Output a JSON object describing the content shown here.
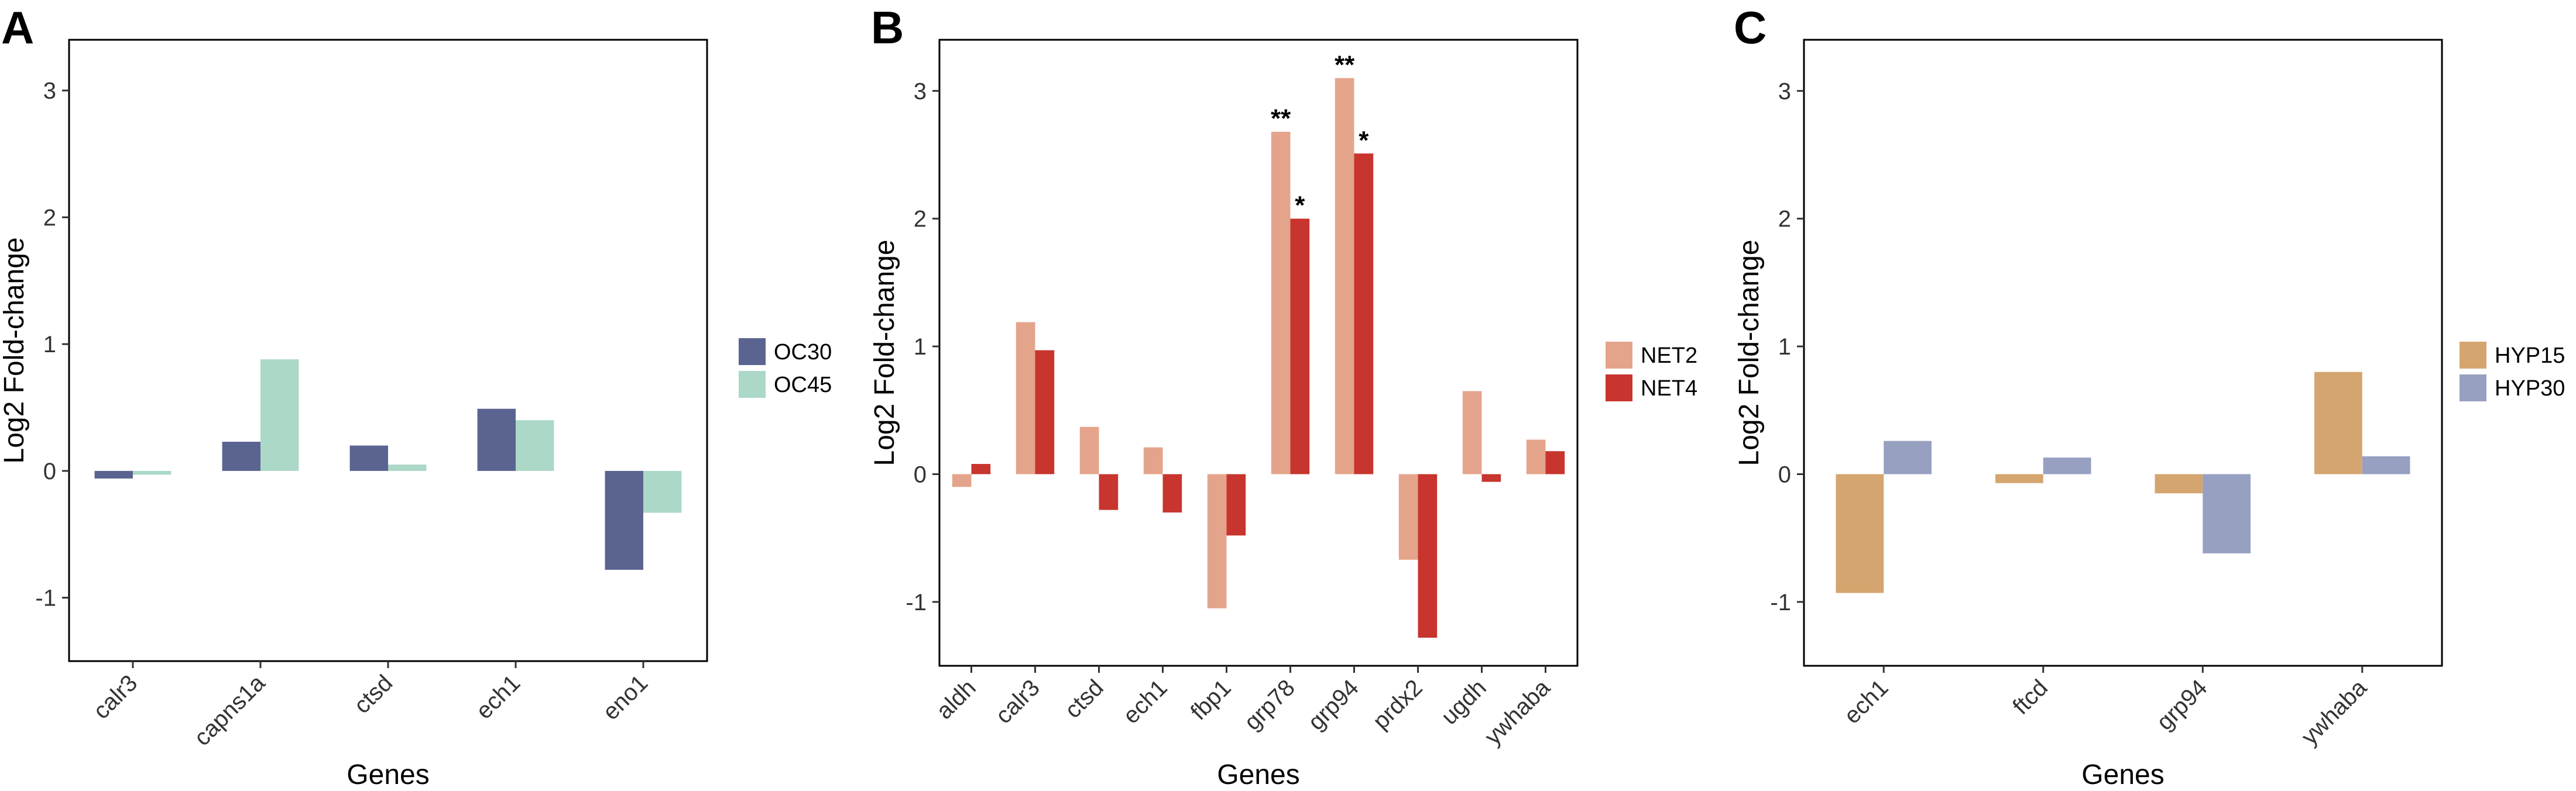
{
  "chart_data": [
    {
      "panel": "A",
      "type": "bar",
      "xlabel": "Genes",
      "ylabel": "Log2 Fold-change",
      "ylim": [
        -1.5,
        3.4
      ],
      "yticks": [
        -1,
        0,
        1,
        2,
        3
      ],
      "ytick_labels": [
        "-1",
        "0",
        "1",
        "2",
        "3"
      ],
      "categories": [
        "calr3",
        "capns1a",
        "ctsd",
        "ech1",
        "eno1"
      ],
      "series": [
        {
          "name": "OC30",
          "color": "#5b6391",
          "values": [
            -0.06,
            0.23,
            0.2,
            0.49,
            -0.78
          ]
        },
        {
          "name": "OC45",
          "color": "#acd8c7",
          "values": [
            -0.03,
            0.88,
            0.05,
            0.4,
            -0.33
          ]
        }
      ],
      "legend": "right",
      "annotations": []
    },
    {
      "panel": "B",
      "type": "bar",
      "xlabel": "Genes",
      "ylabel": "Log2 Fold-change",
      "ylim": [
        -1.5,
        3.4
      ],
      "yticks": [
        -1,
        0,
        1,
        2,
        3
      ],
      "ytick_labels": [
        "-1",
        "0",
        "1",
        "2",
        "3"
      ],
      "categories": [
        "aldh",
        "calr3",
        "ctsd",
        "ech1",
        "fbp1",
        "grp78",
        "grp94",
        "prdx2",
        "ugdh",
        "ywhaba"
      ],
      "series": [
        {
          "name": "NET2",
          "color": "#e4a48c",
          "values": [
            -0.1,
            1.19,
            0.37,
            0.21,
            -1.05,
            2.68,
            3.1,
            -0.67,
            0.65,
            0.27
          ]
        },
        {
          "name": "NET4",
          "color": "#c7352e",
          "values": [
            0.08,
            0.97,
            -0.28,
            -0.3,
            -0.48,
            2.0,
            2.51,
            -1.28,
            -0.06,
            0.18
          ]
        }
      ],
      "legend": "right",
      "annotations": [
        {
          "text": "**",
          "category": "grp78",
          "series": "NET2"
        },
        {
          "text": "*",
          "category": "grp78",
          "series": "NET4"
        },
        {
          "text": "**",
          "category": "grp94",
          "series": "NET2"
        },
        {
          "text": "*",
          "category": "grp94",
          "series": "NET4"
        }
      ]
    },
    {
      "panel": "C",
      "type": "bar",
      "xlabel": "Genes",
      "ylabel": "Log2 Fold-change",
      "ylim": [
        -1.5,
        3.4
      ],
      "yticks": [
        -1,
        0,
        1,
        2,
        3
      ],
      "ytick_labels": [
        "-1",
        "0",
        "1",
        "2",
        "3"
      ],
      "categories": [
        "ech1",
        "ftcd",
        "grp94",
        "ywhaba"
      ],
      "series": [
        {
          "name": "HYP15",
          "color": "#d5a56f",
          "values": [
            -0.93,
            -0.07,
            -0.15,
            0.8
          ]
        },
        {
          "name": "HYP30",
          "color": "#97a0c0",
          "values": [
            0.26,
            0.13,
            -0.62,
            0.14
          ]
        }
      ],
      "legend": "right",
      "annotations": []
    }
  ]
}
